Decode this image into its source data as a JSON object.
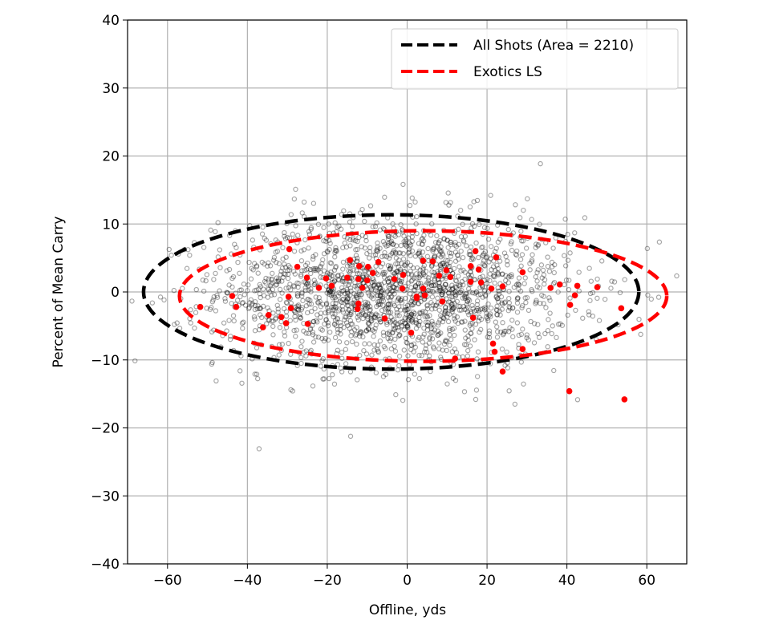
{
  "chart_data": {
    "type": "scatter",
    "xlabel": "Offline, yds",
    "ylabel": "Percent of Mean Carry",
    "xlim": [
      -70,
      70
    ],
    "ylim": [
      -40,
      40
    ],
    "xticks": [
      -60,
      -40,
      -20,
      0,
      20,
      40,
      60
    ],
    "yticks": [
      -40,
      -30,
      -20,
      -10,
      0,
      10,
      20,
      30,
      40
    ],
    "xtick_labels": [
      "−60",
      "−40",
      "−20",
      "0",
      "20",
      "40",
      "60"
    ],
    "ytick_labels": [
      "−40",
      "−30",
      "−20",
      "−10",
      "0",
      "10",
      "20",
      "30",
      "40"
    ],
    "grid": true,
    "legend_position": "top-right",
    "colors": {
      "all_shots": "#000000",
      "exotics": "#ff0000",
      "points_gray": "#808080",
      "grid": "#b0b0b0"
    },
    "ellipses": [
      {
        "name": "All Shots (Area = 2210)",
        "color": "#000000",
        "center": [
          -4,
          0
        ],
        "semi_axes": [
          62,
          11.35
        ],
        "style": "dashed"
      },
      {
        "name": "Exotics LS",
        "color": "#ff0000",
        "center": [
          4,
          -0.6
        ],
        "semi_axes": [
          61,
          9.6
        ],
        "style": "dashed"
      }
    ],
    "all_shots_points": {
      "distribution": "approx. normal",
      "mean": [
        -3,
        0
      ],
      "std": [
        22,
        5.5
      ],
      "marker": "hollow gray circle"
    },
    "exotics_points": [
      [
        -29.5,
        6.3
      ],
      [
        -27.5,
        3.7
      ],
      [
        -25.1,
        2.1
      ],
      [
        -22.1,
        0.6
      ],
      [
        -20.3,
        2.0
      ],
      [
        -18.9,
        0.9
      ],
      [
        -14.3,
        4.7
      ],
      [
        -12,
        3.8
      ],
      [
        -9.8,
        3.7
      ],
      [
        -8.6,
        2.8
      ],
      [
        -7.2,
        4.4
      ],
      [
        -15,
        2.1
      ],
      [
        -12.2,
        1.9
      ],
      [
        -10,
        1.7
      ],
      [
        -11.2,
        0.6
      ],
      [
        -3.2,
        1.9
      ],
      [
        -1.2,
        0.5
      ],
      [
        -1,
        2.5
      ],
      [
        2.4,
        -0.9
      ],
      [
        -12.2,
        -1.7
      ],
      [
        -12.4,
        -2.5
      ],
      [
        -5.6,
        -3.9
      ],
      [
        1,
        -6
      ],
      [
        -43.8,
        -0.6
      ],
      [
        -42.8,
        -2.2
      ],
      [
        -51.8,
        -2.2
      ],
      [
        -29.7,
        -0.7
      ],
      [
        -29.1,
        -2.4
      ],
      [
        -34.7,
        -3.4
      ],
      [
        -31.5,
        -3.7
      ],
      [
        -30.3,
        -4.6
      ],
      [
        -36.1,
        -5.2
      ],
      [
        -24.9,
        -4.7
      ],
      [
        4,
        4.6
      ],
      [
        6.4,
        4.5
      ],
      [
        8,
        2.4
      ],
      [
        9.8,
        3.2
      ],
      [
        10.8,
        2.2
      ],
      [
        4,
        0.5
      ],
      [
        2.4,
        -0.7
      ],
      [
        4.4,
        -0.5
      ],
      [
        8.8,
        -1.4
      ],
      [
        16.5,
        -3.8
      ],
      [
        17.1,
        6
      ],
      [
        22.3,
        5.1
      ],
      [
        15.9,
        3.8
      ],
      [
        17.9,
        3.3
      ],
      [
        15.9,
        1.5
      ],
      [
        18.5,
        1.4
      ],
      [
        21.1,
        0.5
      ],
      [
        23.9,
        0.8
      ],
      [
        28.9,
        2.9
      ],
      [
        35.9,
        0.6
      ],
      [
        38.2,
        1.1
      ],
      [
        42.6,
        0.9
      ],
      [
        47.6,
        0.7
      ],
      [
        42,
        -0.5
      ],
      [
        40.8,
        -1.9
      ],
      [
        53.6,
        -2.4
      ],
      [
        21.5,
        -7.6
      ],
      [
        21.9,
        -8.8
      ],
      [
        28.9,
        -8.4
      ],
      [
        23.9,
        -11.7
      ],
      [
        40.6,
        -14.6
      ],
      [
        54.4,
        -15.8
      ],
      [
        12,
        -9.8
      ]
    ],
    "legend": [
      "All Shots (Area = 2210)",
      "Exotics LS"
    ]
  }
}
